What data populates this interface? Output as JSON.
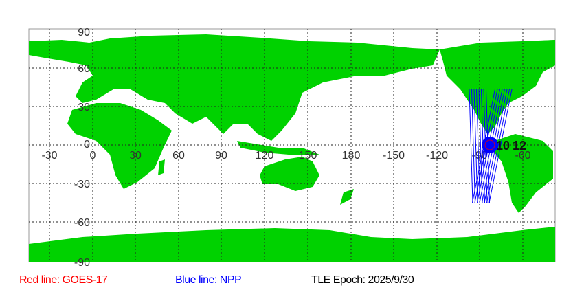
{
  "map": {
    "lon_labels": [
      "-30",
      "0",
      "30",
      "60",
      "90",
      "120",
      "150",
      "180",
      "-150",
      "-120",
      "-90",
      "-60"
    ],
    "lat_labels": [
      "90",
      "60",
      "30",
      "0",
      "-30",
      "-60",
      "-90"
    ],
    "pass_labels": [
      "10",
      "12"
    ],
    "land_color": "#00d200",
    "track_color": "#0000ff",
    "marker_color": "#ff0000"
  },
  "legend": {
    "red_line": "Red line: GOES-17",
    "blue_line": "Blue line: NPP",
    "epoch": "TLE Epoch: 2025/9/30"
  }
}
